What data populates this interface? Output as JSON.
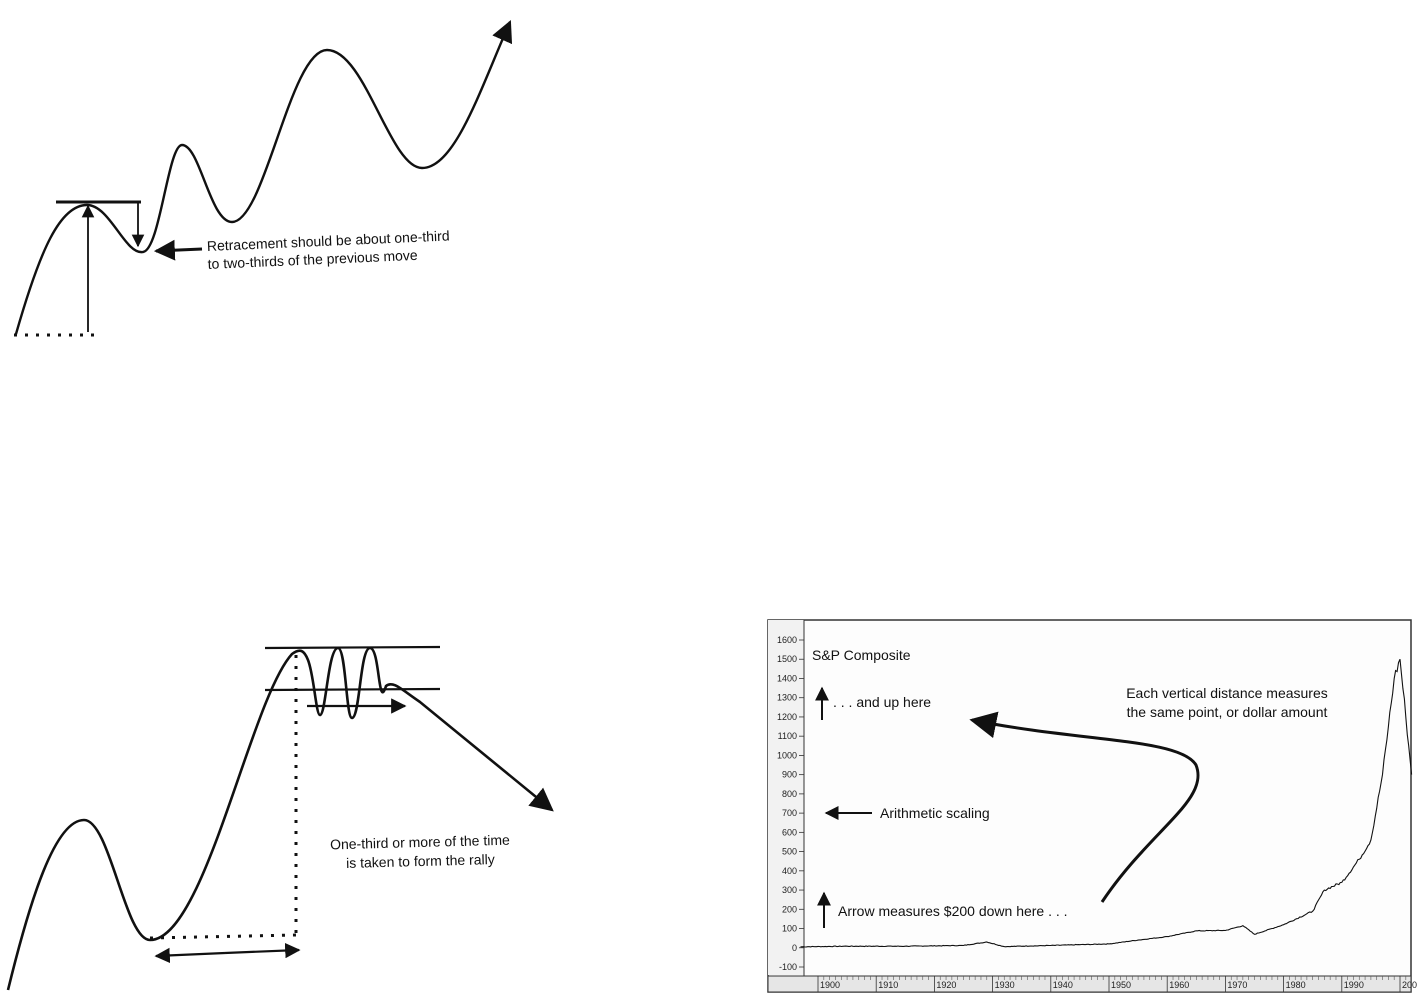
{
  "diagram1": {
    "retracement_note": [
      "Retracement should be about one-third",
      "to two-thirds of the previous move"
    ]
  },
  "diagram2": {
    "time_note": [
      "One-third or more of the time",
      "is taken to form the rally"
    ]
  },
  "chart_data": {
    "type": "line",
    "title": "S&P Composite",
    "ylim": [
      -100,
      1600
    ],
    "y_ticks": [
      "1600",
      "1500",
      "1400",
      "1300",
      "1200",
      "1100",
      "1000",
      "900",
      "800",
      "700",
      "600",
      "500",
      "400",
      "300",
      "200",
      "100",
      "0",
      "-100"
    ],
    "x_ticks": [
      "1900",
      "1910",
      "1920",
      "1930",
      "1940",
      "1950",
      "1960",
      "1970",
      "1980",
      "1990",
      "200"
    ],
    "x": [
      1897,
      1905,
      1915,
      1925,
      1929,
      1932,
      1940,
      1950,
      1955,
      1960,
      1965,
      1970,
      1973,
      1975,
      1980,
      1985,
      1987,
      1990,
      1993,
      1995,
      1997,
      1998,
      1999,
      2000,
      2001,
      2002
    ],
    "values": [
      5,
      8,
      8,
      12,
      30,
      6,
      12,
      20,
      40,
      58,
      88,
      90,
      115,
      70,
      120,
      190,
      300,
      340,
      460,
      560,
      900,
      1150,
      1400,
      1500,
      1200,
      900
    ],
    "annotations": {
      "up_here": ". . . and up here",
      "vertical_distance": [
        "Each vertical distance measures",
        "the same point, or dollar amount"
      ],
      "arithmetic": "Arithmetic scaling",
      "down_here": "Arrow measures $200 down here . . ."
    }
  }
}
